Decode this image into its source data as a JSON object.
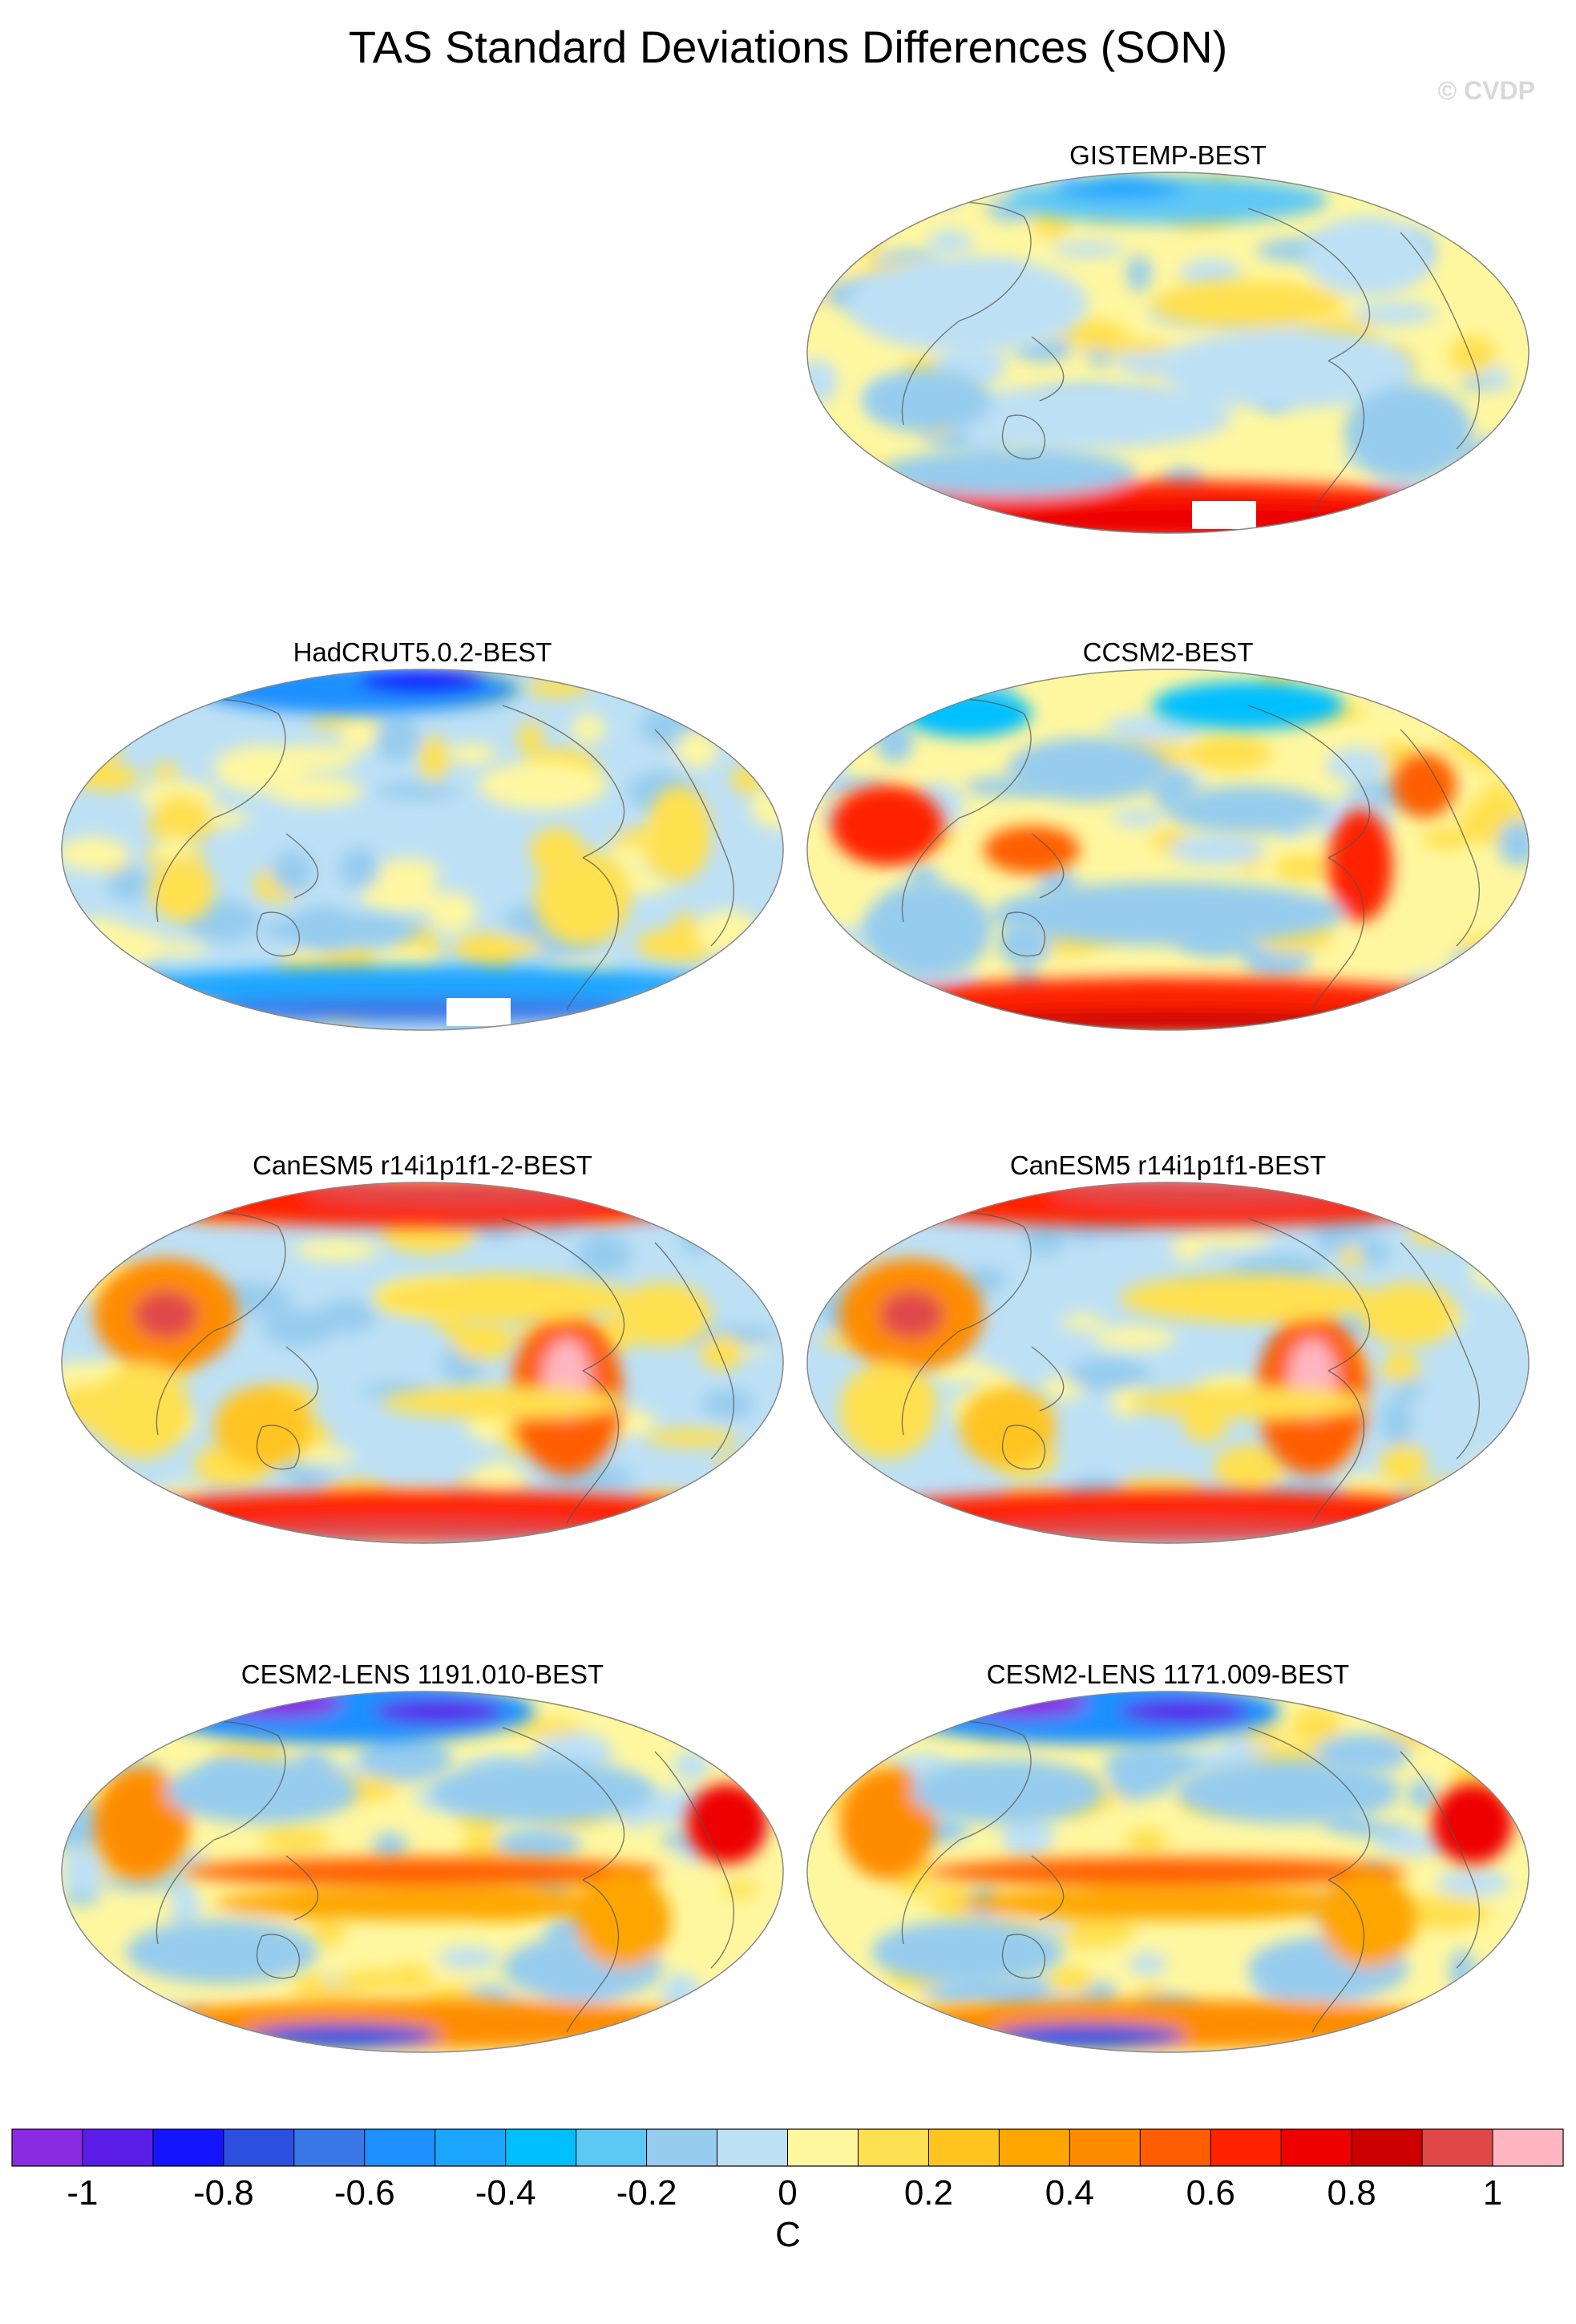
{
  "title": "TAS Standard Deviations Differences (SON)",
  "watermark": "© CVDP",
  "chart_data": {
    "type": "heatmap",
    "projection": "Robinson (global), filled contours with coastlines",
    "panels": [
      {
        "title": "GISTEMP-BEST",
        "column": "right",
        "row": 1,
        "has_missing_antarctic": true
      },
      {
        "title": "HadCRUT5.0.2-BEST",
        "column": "left",
        "row": 2,
        "has_missing_antarctic": true
      },
      {
        "title": "CCSM2-BEST",
        "column": "right",
        "row": 2
      },
      {
        "title": "CanESM5 r14i1p1f1-2-BEST",
        "column": "left",
        "row": 3
      },
      {
        "title": "CanESM5 r14i1p1f1-BEST",
        "column": "right",
        "row": 3
      },
      {
        "title": "CESM2-LENS 1191.010-BEST",
        "column": "left",
        "row": 4
      },
      {
        "title": "CESM2-LENS 1171.009-BEST",
        "column": "right",
        "row": 4
      }
    ],
    "colorbar": {
      "label": "C",
      "levels": [
        -1,
        -0.9,
        -0.8,
        -0.7,
        -0.6,
        -0.5,
        -0.4,
        -0.3,
        -0.2,
        -0.1,
        0,
        0.1,
        0.2,
        0.3,
        0.4,
        0.5,
        0.6,
        0.7,
        0.8,
        0.9,
        1
      ],
      "tick_labels": [
        "-1",
        "-0.8",
        "-0.6",
        "-0.4",
        "-0.2",
        "0",
        "0.2",
        "0.4",
        "0.6",
        "0.8",
        "1"
      ],
      "colors": [
        "#8a2be2",
        "#5a1ee8",
        "#1414ff",
        "#2c4fe0",
        "#3a78e8",
        "#1e90ff",
        "#1aa6ff",
        "#00bfff",
        "#5ec8f5",
        "#96ccee",
        "#bde0f5",
        "#fff7a0",
        "#ffe050",
        "#ffc420",
        "#ffa500",
        "#ff8c00",
        "#ff5e00",
        "#ff2200",
        "#ee0000",
        "#cc0000",
        "#e04848",
        "#ffb6c1"
      ]
    }
  }
}
